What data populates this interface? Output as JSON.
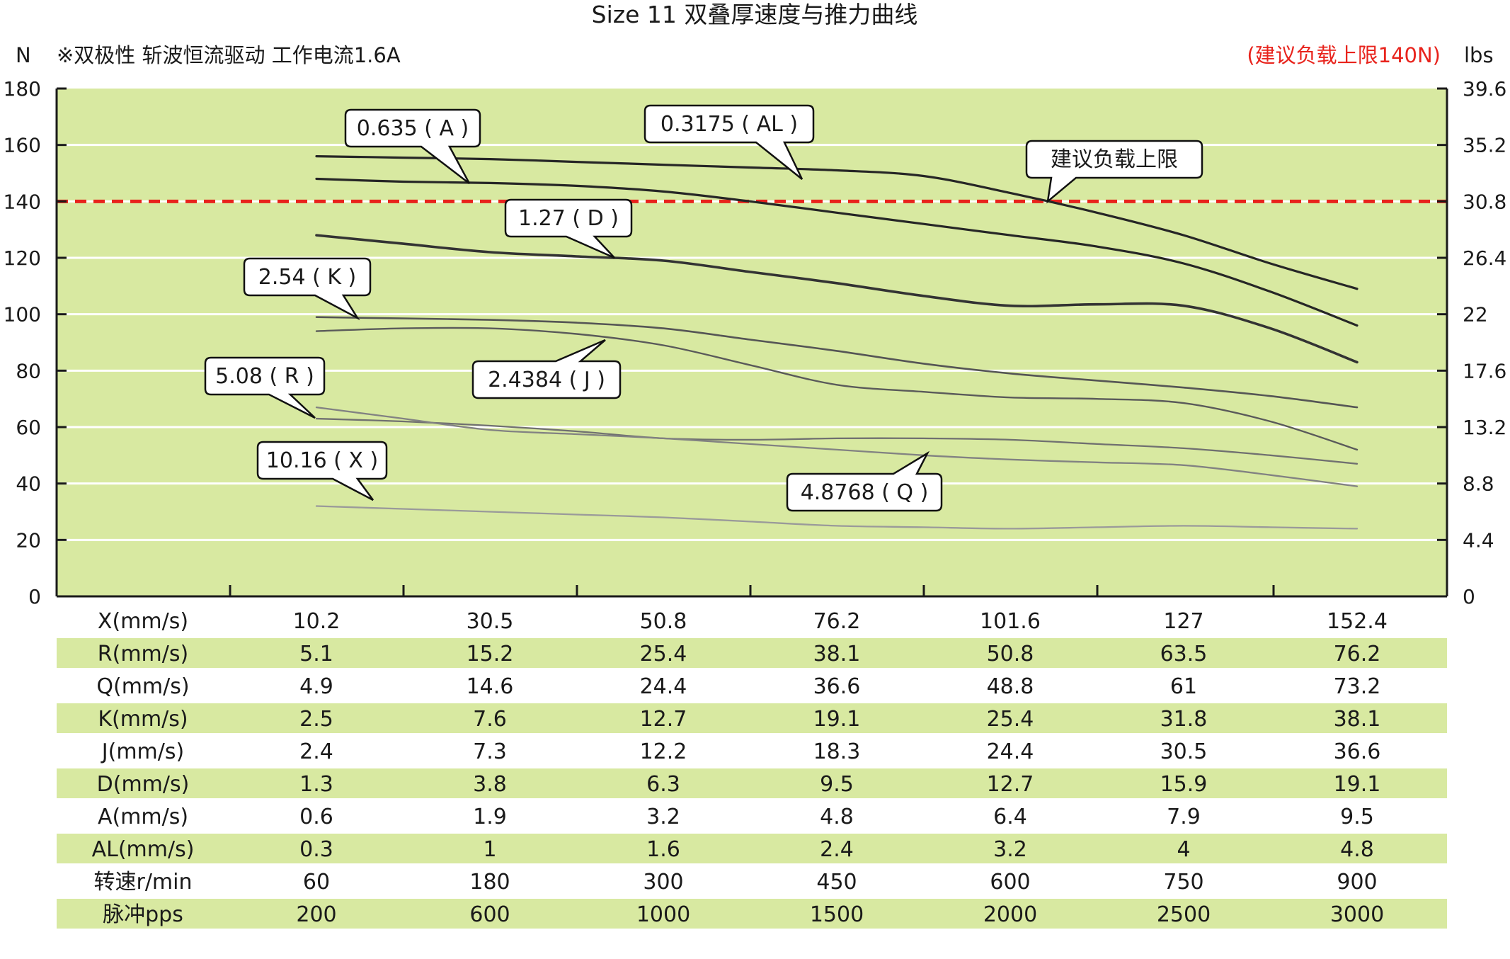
{
  "chart_data": {
    "type": "line",
    "title": "Size 11 双叠厚速度与推力曲线",
    "subtitle": "※双极性 斩波恒流驱动 工作电流1.6A",
    "ylabel": "N",
    "y2label": "lbs",
    "recommend_note": "(建议负载上限140N)",
    "ylim": [
      0,
      180
    ],
    "y_ticks": [
      0,
      20,
      40,
      60,
      80,
      100,
      120,
      140,
      160,
      180
    ],
    "y2_ticks": [
      "0",
      "4.4",
      "8.8",
      "13.2",
      "17.6",
      "22",
      "26.4",
      "30.8",
      "35.2",
      "39.6"
    ],
    "x_index": [
      0,
      1,
      2,
      3,
      4,
      5,
      6
    ],
    "grid": true,
    "reference_line": {
      "y": 140,
      "label": "建议负载上限",
      "color": "#e8231c"
    },
    "colors": {
      "plot_bg": "#d8e9a1",
      "band": "#d8e9a1",
      "grid": "#ffffff",
      "axis": "#1a1a1a",
      "red": "#e8231c"
    },
    "series": [
      {
        "id": "AL",
        "label": "0.3175 ( AL )",
        "color": "#262626",
        "width": 3.2,
        "x": [
          0,
          0.5,
          1,
          1.5,
          2,
          2.5,
          3,
          3.5,
          4,
          4.5,
          5,
          5.5,
          6
        ],
        "y": [
          156,
          155.5,
          155,
          154,
          153,
          152,
          151,
          149,
          143,
          136,
          128,
          118,
          109
        ]
      },
      {
        "id": "A",
        "label": "0.635 ( A )",
        "color": "#262626",
        "width": 3.2,
        "x": [
          0,
          0.5,
          1,
          1.5,
          2,
          2.5,
          3,
          3.5,
          4,
          4.5,
          5,
          5.5,
          6
        ],
        "y": [
          148,
          147,
          146.5,
          145.5,
          143.5,
          140,
          136,
          132,
          128,
          124,
          118,
          108,
          96
        ]
      },
      {
        "id": "D",
        "label": "1.27 ( D )",
        "color": "#333333",
        "width": 3.6,
        "x": [
          0,
          0.5,
          1,
          1.5,
          2,
          2.5,
          3,
          3.5,
          4,
          4.5,
          5,
          5.5,
          6
        ],
        "y": [
          128,
          125,
          122,
          120.5,
          119,
          115,
          111,
          106.5,
          103,
          103.5,
          103,
          95,
          83
        ]
      },
      {
        "id": "K",
        "label": "2.54 ( K )",
        "color": "#555555",
        "width": 2.6,
        "x": [
          0,
          0.5,
          1,
          1.5,
          2,
          2.5,
          3,
          3.5,
          4,
          4.5,
          5,
          5.5,
          6
        ],
        "y": [
          99,
          98.5,
          98,
          97,
          95,
          91,
          87,
          82.5,
          79,
          76.5,
          74,
          71,
          67
        ]
      },
      {
        "id": "J",
        "label": "2.4384 ( J )",
        "color": "#5a5a5a",
        "width": 2.4,
        "x": [
          0,
          0.5,
          1,
          1.5,
          2,
          2.5,
          3,
          3.5,
          4,
          4.5,
          5,
          5.5,
          6
        ],
        "y": [
          94,
          95,
          95,
          93,
          89,
          82,
          75,
          72.5,
          70.5,
          70,
          68.5,
          62,
          52
        ]
      },
      {
        "id": "R",
        "label": "5.08 ( R )",
        "color": "#707070",
        "width": 2.3,
        "x": [
          0,
          0.5,
          1,
          1.5,
          2,
          2.5,
          3,
          3.5,
          4,
          4.5,
          5,
          5.5,
          6
        ],
        "y": [
          63,
          62,
          60.5,
          58.5,
          56,
          55.5,
          56,
          56,
          55.5,
          54,
          52.5,
          50,
          47
        ]
      },
      {
        "id": "Q",
        "label": "4.8768 ( Q )",
        "color": "#828282",
        "width": 2.3,
        "x": [
          0,
          0.5,
          1,
          1.5,
          2,
          2.5,
          3,
          3.5,
          4,
          4.5,
          5,
          5.5,
          6
        ],
        "y": [
          67,
          63,
          59,
          57.5,
          56,
          54,
          52,
          50,
          48.5,
          47.5,
          46.5,
          43,
          39
        ]
      },
      {
        "id": "X",
        "label": "10.16 ( X )",
        "color": "#9a9a9a",
        "width": 2.3,
        "x": [
          0,
          0.5,
          1,
          1.5,
          2,
          2.5,
          3,
          3.5,
          4,
          4.5,
          5,
          5.5,
          6
        ],
        "y": [
          32,
          31,
          30,
          29,
          28,
          26.5,
          25,
          24.5,
          24,
          24.5,
          25,
          24.5,
          24
        ]
      }
    ],
    "table": {
      "columns_count": 7,
      "rows": [
        {
          "label": "X(mm/s)",
          "values": [
            "10.2",
            "30.5",
            "50.8",
            "76.2",
            "101.6",
            "127",
            "152.4"
          ],
          "shaded": false
        },
        {
          "label": "R(mm/s)",
          "values": [
            "5.1",
            "15.2",
            "25.4",
            "38.1",
            "50.8",
            "63.5",
            "76.2"
          ],
          "shaded": true
        },
        {
          "label": "Q(mm/s)",
          "values": [
            "4.9",
            "14.6",
            "24.4",
            "36.6",
            "48.8",
            "61",
            "73.2"
          ],
          "shaded": false
        },
        {
          "label": "K(mm/s)",
          "values": [
            "2.5",
            "7.6",
            "12.7",
            "19.1",
            "25.4",
            "31.8",
            "38.1"
          ],
          "shaded": true
        },
        {
          "label": "J(mm/s)",
          "values": [
            "2.4",
            "7.3",
            "12.2",
            "18.3",
            "24.4",
            "30.5",
            "36.6"
          ],
          "shaded": false
        },
        {
          "label": "D(mm/s)",
          "values": [
            "1.3",
            "3.8",
            "6.3",
            "9.5",
            "12.7",
            "15.9",
            "19.1"
          ],
          "shaded": true
        },
        {
          "label": "A(mm/s)",
          "values": [
            "0.6",
            "1.9",
            "3.2",
            "4.8",
            "6.4",
            "7.9",
            "9.5"
          ],
          "shaded": false
        },
        {
          "label": "AL(mm/s)",
          "values": [
            "0.3",
            "1",
            "1.6",
            "2.4",
            "3.2",
            "4",
            "4.8"
          ],
          "shaded": true
        },
        {
          "label": "转速r/min",
          "values": [
            "60",
            "180",
            "300",
            "450",
            "600",
            "750",
            "900"
          ],
          "shaded": false
        },
        {
          "label": "脉冲pps",
          "values": [
            "200",
            "600",
            "1000",
            "1500",
            "2000",
            "2500",
            "3000"
          ],
          "shaded": true
        }
      ]
    }
  }
}
